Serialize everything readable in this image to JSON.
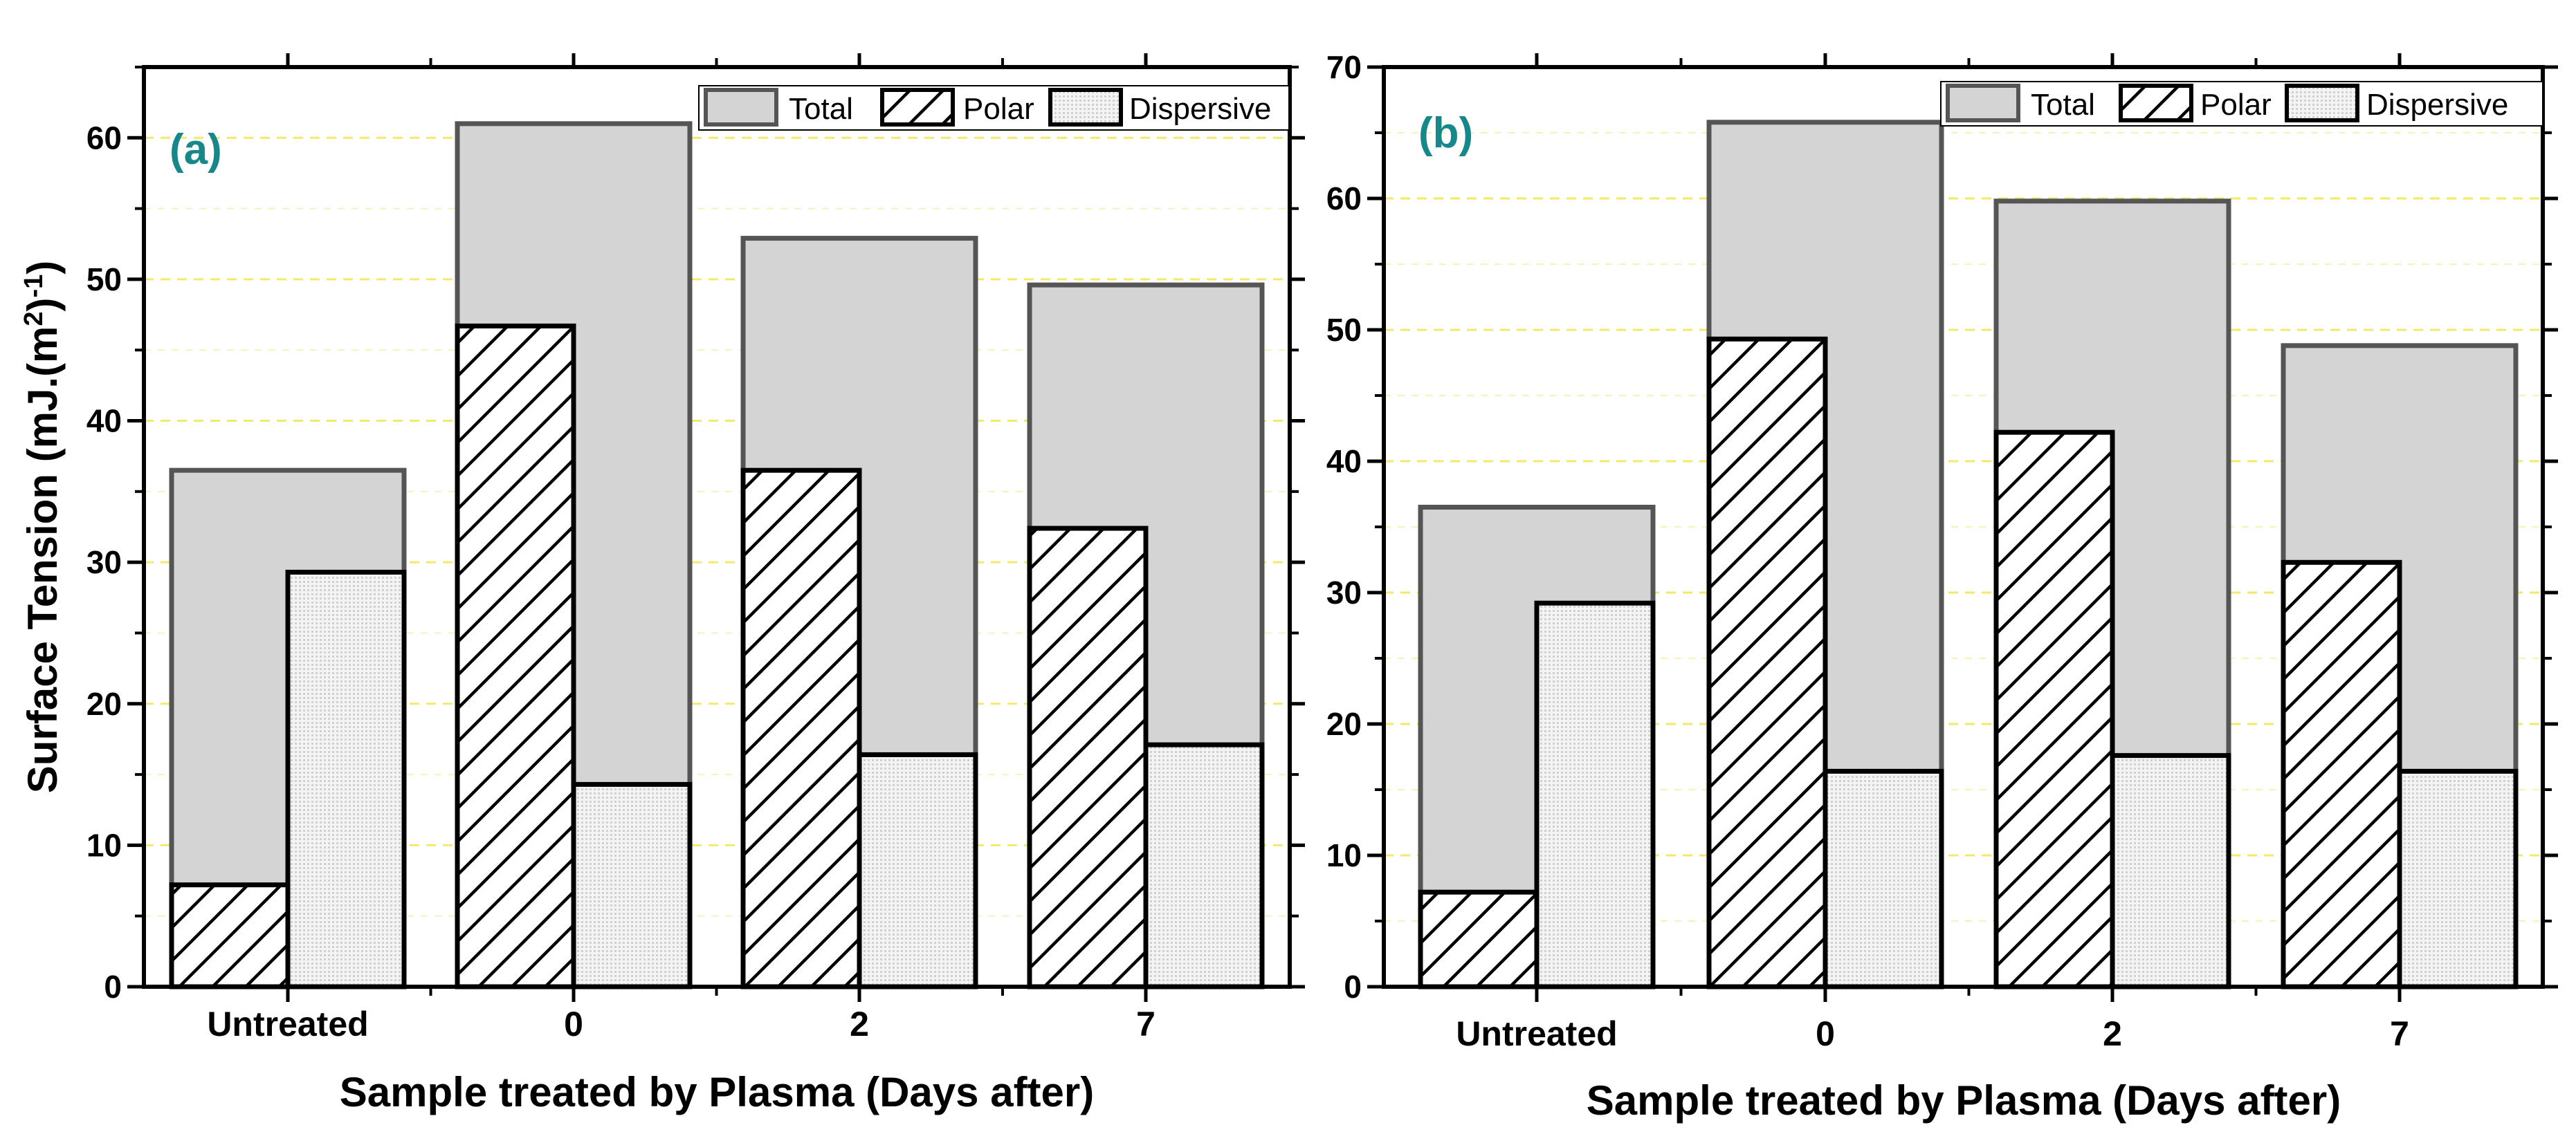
{
  "colors": {
    "total_fill": "#d4d4d4",
    "total_stroke": "#555555",
    "dispersive_fill": "#eeeeee",
    "panel_label": "#16888a",
    "gridline": "#f3e96a"
  },
  "chart_data": [
    {
      "type": "bar",
      "panel_label": "(a)",
      "categories": [
        "Untreated",
        "0",
        "2",
        "7"
      ],
      "series": [
        {
          "name": "Total",
          "values": [
            36.5,
            61,
            52.9,
            49.6
          ]
        },
        {
          "name": "Polar",
          "values": [
            7.2,
            46.7,
            36.5,
            32.4
          ]
        },
        {
          "name": "Dispersive",
          "values": [
            29.3,
            14.3,
            16.4,
            17.1
          ]
        }
      ],
      "xlabel": "Sample treated by Plasma (Days after)",
      "ylabel_main": "Surface Tension (mJ.(m",
      "ylabel_sup1": "2",
      "ylabel_mid": ")",
      "ylabel_sup2": "-1",
      "ylabel_end": ")",
      "ylim": [
        0,
        65
      ],
      "yticks": [
        "0",
        "10",
        "20",
        "30",
        "40",
        "50",
        "60"
      ],
      "legend": [
        "Total",
        "Polar",
        "Dispersive"
      ],
      "legend_position": "top-right",
      "grid": "dashed horizontal"
    },
    {
      "type": "bar",
      "panel_label": "(b)",
      "categories": [
        "Untreated",
        "0",
        "2",
        "7"
      ],
      "series": [
        {
          "name": "Total",
          "values": [
            36.5,
            65.8,
            59.8,
            48.8
          ]
        },
        {
          "name": "Polar",
          "values": [
            7.2,
            49.3,
            42.2,
            32.3
          ]
        },
        {
          "name": "Dispersive",
          "values": [
            29.2,
            16.4,
            17.6,
            16.4
          ]
        }
      ],
      "xlabel": "Sample treated by Plasma (Days after)",
      "ylim": [
        0,
        70
      ],
      "yticks": [
        "0",
        "10",
        "20",
        "30",
        "40",
        "50",
        "60",
        "70"
      ],
      "legend": [
        "Total",
        "Polar",
        "Dispersive"
      ],
      "legend_position": "top-right",
      "grid": "dashed horizontal"
    }
  ]
}
